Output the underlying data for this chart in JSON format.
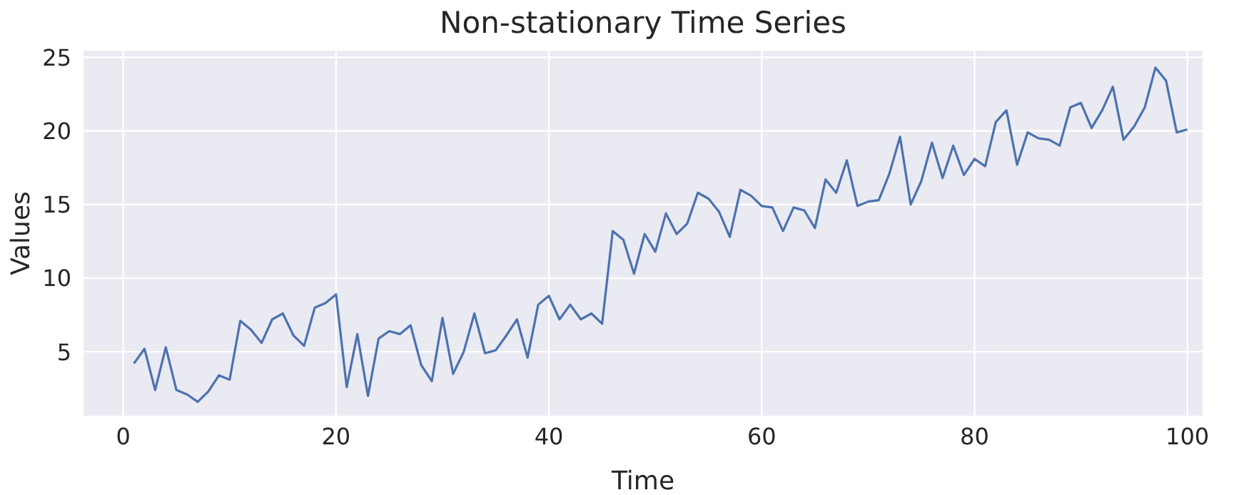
{
  "chart_data": {
    "type": "line",
    "title": "Non-stationary Time Series",
    "xlabel": "Time",
    "ylabel": "Values",
    "x": [
      1,
      2,
      3,
      4,
      5,
      6,
      7,
      8,
      9,
      10,
      11,
      12,
      13,
      14,
      15,
      16,
      17,
      18,
      19,
      20,
      21,
      22,
      23,
      24,
      25,
      26,
      27,
      28,
      29,
      30,
      31,
      32,
      33,
      34,
      35,
      36,
      37,
      38,
      39,
      40,
      41,
      42,
      43,
      44,
      45,
      46,
      47,
      48,
      49,
      50,
      51,
      52,
      53,
      54,
      55,
      56,
      57,
      58,
      59,
      60,
      61,
      62,
      63,
      64,
      65,
      66,
      67,
      68,
      69,
      70,
      71,
      72,
      73,
      74,
      75,
      76,
      77,
      78,
      79,
      80,
      81,
      82,
      83,
      84,
      85,
      86,
      87,
      88,
      89,
      90,
      91,
      92,
      93,
      94,
      95,
      96,
      97,
      98,
      99,
      100
    ],
    "series": [
      {
        "color": "#4c72b0",
        "values": [
          4.2,
          5.2,
          2.4,
          5.3,
          2.4,
          2.1,
          1.6,
          2.3,
          3.4,
          3.1,
          7.1,
          6.5,
          5.6,
          7.2,
          7.6,
          6.1,
          5.4,
          8.0,
          8.3,
          8.9,
          2.6,
          6.2,
          2.0,
          5.9,
          6.4,
          6.2,
          6.8,
          4.1,
          3.0,
          7.3,
          3.5,
          5.0,
          7.6,
          4.9,
          5.1,
          6.1,
          7.2,
          4.6,
          8.2,
          8.8,
          7.2,
          8.2,
          7.2,
          7.6,
          6.9,
          13.2,
          12.6,
          10.3,
          13.0,
          11.8,
          14.4,
          13.0,
          13.7,
          15.8,
          15.4,
          14.5,
          12.8,
          16.0,
          15.6,
          14.9,
          14.8,
          13.2,
          14.8,
          14.6,
          13.4,
          16.7,
          15.8,
          18.0,
          14.9,
          15.2,
          15.3,
          17.1,
          19.6,
          15.0,
          16.6,
          19.2,
          16.8,
          19.0,
          17.0,
          18.1,
          17.6,
          20.6,
          21.4,
          17.7,
          19.9,
          19.5,
          19.4,
          19.0,
          21.6,
          21.9,
          20.2,
          21.4,
          23.0,
          19.4,
          20.3,
          21.6,
          24.3,
          23.4,
          19.9,
          20.1
        ]
      }
    ],
    "xlim": [
      -3.8,
      101.5
    ],
    "xticks": [
      0,
      20,
      40,
      60,
      80,
      100
    ],
    "ylim": [
      0.6,
      25.5
    ],
    "yticks": [
      5,
      10,
      15,
      20,
      25
    ],
    "grid": true,
    "marker": "none",
    "line_style": "solid"
  }
}
